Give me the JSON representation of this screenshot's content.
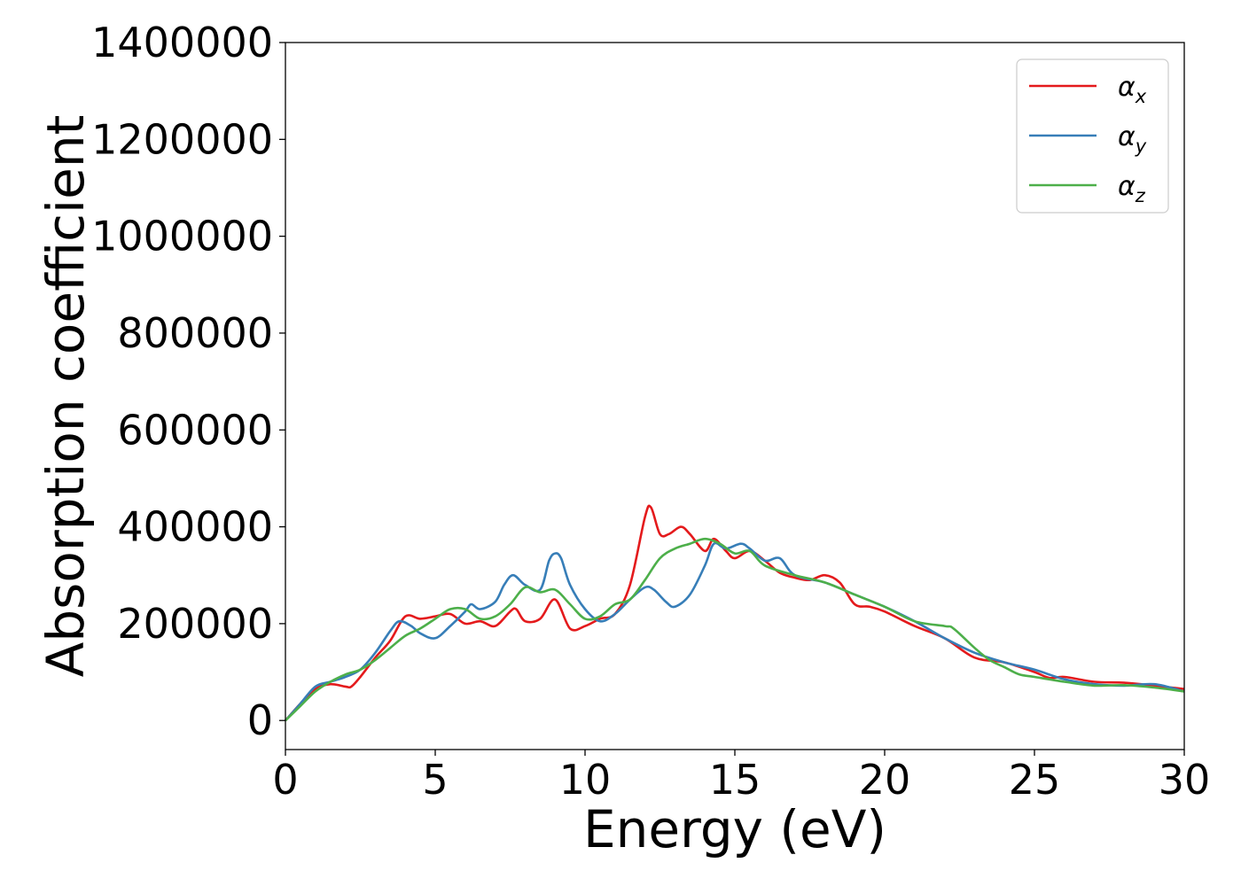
{
  "chart_data": {
    "type": "line",
    "title": "",
    "xlabel": "Energy (eV)",
    "ylabel": "Absorption coefficient",
    "xlim": [
      0,
      30
    ],
    "ylim": [
      -60000,
      1400000
    ],
    "xticks": [
      0,
      5,
      10,
      15,
      20,
      25,
      30
    ],
    "yticks": [
      0,
      200000,
      400000,
      600000,
      800000,
      1000000,
      1200000,
      1400000
    ],
    "grid": false,
    "legend_position": "top-right",
    "series": [
      {
        "name": "αx",
        "symbol": "α",
        "subscript": "x",
        "color": "#e41a1c",
        "x": [
          0,
          0.5,
          1.0,
          1.5,
          2.0,
          2.2,
          2.5,
          3.0,
          3.5,
          4.0,
          4.5,
          5.0,
          5.5,
          6.0,
          6.5,
          7.0,
          7.5,
          7.7,
          8.0,
          8.5,
          9.0,
          9.5,
          10.0,
          10.5,
          11.0,
          11.5,
          12.0,
          12.2,
          12.5,
          12.8,
          13.2,
          13.5,
          14.0,
          14.3,
          14.7,
          15.0,
          15.5,
          16.0,
          16.5,
          17.0,
          17.5,
          18.0,
          18.5,
          19.0,
          19.5,
          20.0,
          21.0,
          22.0,
          23.0,
          24.0,
          25.0,
          25.5,
          26.0,
          27.0,
          28.0,
          29.0,
          30.0
        ],
        "y": [
          0,
          35000,
          65000,
          75000,
          70000,
          70000,
          90000,
          130000,
          165000,
          215000,
          210000,
          215000,
          220000,
          200000,
          205000,
          195000,
          225000,
          230000,
          205000,
          210000,
          250000,
          190000,
          195000,
          210000,
          220000,
          280000,
          420000,
          440000,
          385000,
          385000,
          400000,
          385000,
          350000,
          375000,
          350000,
          335000,
          350000,
          330000,
          305000,
          295000,
          290000,
          300000,
          285000,
          240000,
          235000,
          225000,
          195000,
          170000,
          130000,
          120000,
          100000,
          88000,
          90000,
          80000,
          78000,
          72000,
          65000
        ]
      },
      {
        "name": "αy",
        "symbol": "α",
        "subscript": "y",
        "color": "#377eb8",
        "x": [
          0,
          0.5,
          1.0,
          1.5,
          2.0,
          2.5,
          3.0,
          3.5,
          3.8,
          4.2,
          4.5,
          5.0,
          5.5,
          6.0,
          6.2,
          6.5,
          7.0,
          7.3,
          7.6,
          8.0,
          8.5,
          8.8,
          9.0,
          9.2,
          9.5,
          10.0,
          10.5,
          11.0,
          11.5,
          12.0,
          12.3,
          12.7,
          13.0,
          13.5,
          14.0,
          14.3,
          14.7,
          15.2,
          15.5,
          16.0,
          16.5,
          17.0,
          18.0,
          19.0,
          20.0,
          21.0,
          22.0,
          23.0,
          24.0,
          25.0,
          26.0,
          27.0,
          28.0,
          29.0,
          30.0
        ],
        "y": [
          0,
          35000,
          70000,
          80000,
          90000,
          105000,
          140000,
          185000,
          205000,
          195000,
          180000,
          170000,
          195000,
          225000,
          240000,
          230000,
          245000,
          280000,
          300000,
          280000,
          270000,
          330000,
          345000,
          335000,
          280000,
          230000,
          205000,
          220000,
          250000,
          275000,
          270000,
          245000,
          235000,
          260000,
          320000,
          365000,
          355000,
          365000,
          355000,
          330000,
          335000,
          300000,
          285000,
          260000,
          235000,
          205000,
          170000,
          140000,
          120000,
          105000,
          85000,
          75000,
          72000,
          75000,
          60000
        ]
      },
      {
        "name": "αz",
        "symbol": "α",
        "subscript": "z",
        "color": "#4daf4a",
        "x": [
          0,
          0.5,
          1.0,
          1.5,
          2.0,
          2.5,
          3.0,
          3.5,
          4.0,
          4.5,
          5.0,
          5.5,
          6.0,
          6.5,
          7.0,
          7.5,
          8.0,
          8.5,
          9.0,
          9.5,
          10.0,
          10.5,
          11.0,
          11.5,
          12.0,
          12.5,
          13.0,
          13.5,
          14.0,
          14.5,
          15.0,
          15.5,
          16.0,
          17.0,
          18.0,
          19.0,
          20.0,
          21.0,
          22.0,
          22.3,
          23.0,
          23.5,
          24.0,
          24.5,
          25.0,
          26.0,
          27.0,
          28.0,
          29.0,
          30.0
        ],
        "y": [
          0,
          30000,
          60000,
          80000,
          95000,
          105000,
          125000,
          150000,
          175000,
          190000,
          210000,
          230000,
          230000,
          210000,
          215000,
          240000,
          275000,
          265000,
          270000,
          240000,
          210000,
          215000,
          240000,
          250000,
          290000,
          335000,
          355000,
          365000,
          375000,
          365000,
          345000,
          350000,
          320000,
          300000,
          285000,
          260000,
          235000,
          205000,
          195000,
          190000,
          150000,
          125000,
          110000,
          95000,
          90000,
          80000,
          72000,
          73000,
          68000,
          60000
        ]
      }
    ]
  }
}
